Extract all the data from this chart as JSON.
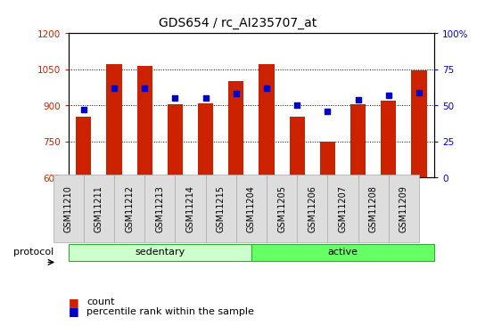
{
  "title": "GDS654 / rc_AI235707_at",
  "samples": [
    "GSM11210",
    "GSM11211",
    "GSM11212",
    "GSM11213",
    "GSM11214",
    "GSM11215",
    "GSM11204",
    "GSM11205",
    "GSM11206",
    "GSM11207",
    "GSM11208",
    "GSM11209"
  ],
  "counts": [
    855,
    1070,
    1065,
    905,
    910,
    1000,
    1070,
    855,
    748,
    905,
    920,
    1045
  ],
  "percentile_ranks": [
    47,
    62,
    62,
    55,
    55,
    58,
    62,
    50,
    46,
    54,
    57,
    59
  ],
  "groups": [
    {
      "label": "sedentary",
      "start": 0,
      "end": 6,
      "color": "#ccffcc"
    },
    {
      "label": "active",
      "start": 6,
      "end": 12,
      "color": "#66ff66"
    }
  ],
  "group_label": "protocol",
  "ylim_left": [
    600,
    1200
  ],
  "ylim_right": [
    0,
    100
  ],
  "yticks_left": [
    600,
    750,
    900,
    1050,
    1200
  ],
  "yticks_right": [
    0,
    25,
    50,
    75,
    100
  ],
  "bar_color": "#cc2200",
  "dot_color": "#0000cc",
  "bar_width": 0.5,
  "grid_color": "black",
  "background_color": "white",
  "title_fontsize": 10,
  "tick_fontsize": 7.5,
  "label_fontsize": 8
}
